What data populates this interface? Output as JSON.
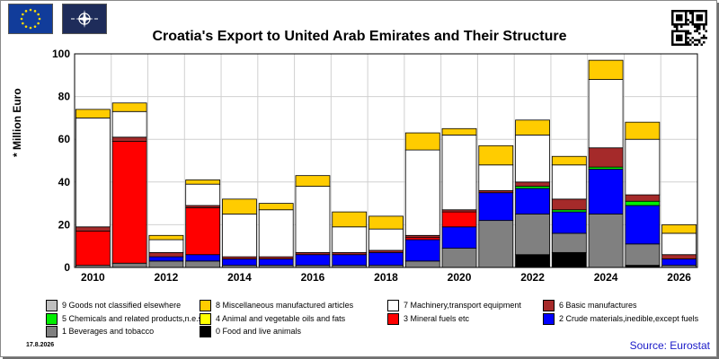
{
  "header": {
    "title": "Croatia's Export to United Arab Emirates and Their Structure",
    "eu_flag_icon": "eu-flag-icon",
    "nato_flag_icon": "nato-flag-icon",
    "qr_icon": "qr-code-icon"
  },
  "footer": {
    "date": "17.8.2026",
    "source": "Source: Eurostat"
  },
  "chart_data": {
    "type": "bar",
    "stacked": true,
    "ylabel": "* Million Euro",
    "ylim": [
      0,
      100
    ],
    "yticks": [
      "0",
      "20",
      "40",
      "60",
      "80",
      "100"
    ],
    "xtick_labels": [
      {
        "year": 2010,
        "label": "2010"
      },
      {
        "year": 2012,
        "label": "2012"
      },
      {
        "year": 2014,
        "label": "2014"
      },
      {
        "year": 2016,
        "label": "2016"
      },
      {
        "year": 2018,
        "label": "2018"
      },
      {
        "year": 2020,
        "label": "2020"
      },
      {
        "year": 2022,
        "label": "2022"
      },
      {
        "year": 2024,
        "label": "2024"
      },
      {
        "year": 2026,
        "label": "2026"
      }
    ],
    "categories": [
      2010,
      2011,
      2012,
      2013,
      2014,
      2015,
      2016,
      2017,
      2018,
      2019,
      2020,
      2021,
      2022,
      2023,
      2024,
      2025,
      2026
    ],
    "grid": true,
    "series": [
      {
        "name": "0 Food and live animals",
        "color": "#000000",
        "values": [
          0,
          0,
          0,
          0,
          0,
          0,
          0,
          0,
          0,
          0,
          0,
          0,
          6,
          7,
          0,
          1,
          0
        ]
      },
      {
        "name": "1 Beverages and tobacco",
        "color": "#808080",
        "values": [
          1,
          2,
          3,
          3,
          1,
          1,
          1,
          1,
          1,
          3,
          9,
          22,
          19,
          9,
          25,
          10,
          1
        ]
      },
      {
        "name": "2 Crude materials,inedible,except fuels",
        "color": "#0000ff",
        "values": [
          0,
          0,
          2,
          3,
          3,
          3,
          5,
          5,
          6,
          10,
          10,
          13,
          12,
          10,
          21,
          18,
          3
        ]
      },
      {
        "name": "3 Mineral fuels etc",
        "color": "#ff0000",
        "values": [
          16,
          57,
          0,
          22,
          0,
          0,
          0,
          0,
          0,
          1,
          7,
          0,
          0,
          0,
          0,
          0,
          0
        ]
      },
      {
        "name": "4 Animal and vegetable oils and fats",
        "color": "#ffff00",
        "values": [
          0,
          0,
          0,
          0,
          0,
          0,
          0,
          0,
          0,
          0,
          0,
          0,
          0,
          0,
          0,
          0,
          0
        ]
      },
      {
        "name": "5 Chemicals and related products,n.e.s.",
        "color": "#00ee00",
        "values": [
          0,
          0,
          0,
          0,
          0,
          0,
          0,
          0,
          0,
          0,
          0,
          0,
          1,
          1,
          1,
          2,
          0
        ]
      },
      {
        "name": "6 Basic manufactures",
        "color": "#a52a2a",
        "values": [
          2,
          2,
          2,
          1,
          1,
          1,
          1,
          1,
          1,
          1,
          1,
          1,
          2,
          5,
          9,
          3,
          2
        ]
      },
      {
        "name": "7 Machinery,transport equipment",
        "color": "#ffffff",
        "values": [
          51,
          12,
          6,
          10,
          20,
          22,
          31,
          12,
          10,
          40,
          35,
          12,
          22,
          16,
          32,
          26,
          10
        ]
      },
      {
        "name": "8 Miscellaneous manufactured articles",
        "color": "#ffcc00",
        "values": [
          4,
          4,
          2,
          2,
          7,
          3,
          5,
          7,
          6,
          8,
          3,
          9,
          7,
          4,
          9,
          8,
          4
        ]
      },
      {
        "name": "9 Goods not classified elsewhere",
        "color": "#bfbfbf",
        "values": [
          0,
          0,
          0,
          0,
          0,
          0,
          0,
          0,
          0,
          0,
          0,
          0,
          0,
          0,
          0,
          0,
          0
        ]
      }
    ]
  },
  "legend": {
    "rows": [
      [
        {
          "label": "9 Goods not classified elsewhere",
          "color": "#bfbfbf"
        },
        {
          "label": "8 Miscellaneous manufactured articles",
          "color": "#ffcc00"
        },
        {
          "label": "7 Machinery,transport equipment",
          "color": "#ffffff"
        },
        {
          "label": "6 Basic manufactures",
          "color": "#a52a2a"
        }
      ],
      [
        {
          "label": "5 Chemicals and related products,n.e.s.",
          "color": "#00ee00"
        },
        {
          "label": "4 Animal and vegetable oils and fats",
          "color": "#ffff00"
        },
        {
          "label": "3 Mineral fuels etc",
          "color": "#ff0000"
        },
        {
          "label": "2 Crude materials,inedible,except fuels",
          "color": "#0000ff"
        }
      ],
      [
        {
          "label": "1 Beverages and tobacco",
          "color": "#808080"
        },
        {
          "label": "0 Food and live animals",
          "color": "#000000"
        }
      ]
    ]
  }
}
